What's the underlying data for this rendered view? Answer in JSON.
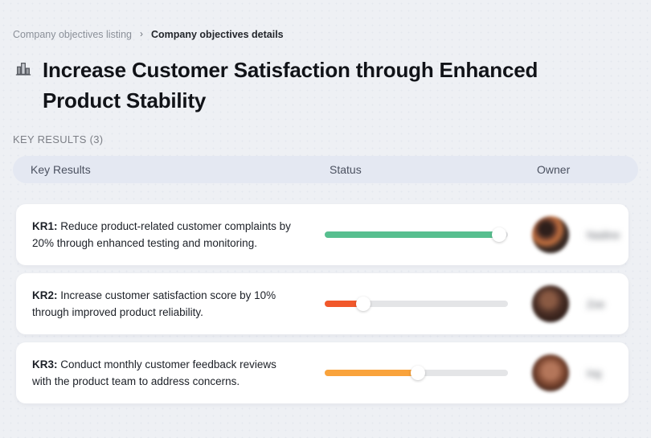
{
  "breadcrumb": {
    "parent": "Company objectives listing",
    "separator": "›",
    "current": "Company objectives details"
  },
  "page": {
    "title": "Increase Customer Satisfaction through Enhanced Product Stability",
    "title_icon": "buildings-icon",
    "section_label": "KEY RESULTS (3)"
  },
  "table": {
    "headers": [
      "Key Results",
      "Status",
      "Owner"
    ]
  },
  "rows": [
    {
      "kr_label": "KR1:",
      "text": "Reduce product-related customer complaints by 20% through enhanced testing and monitoring.",
      "progress": {
        "percent": 95,
        "color": "#57bf8f"
      },
      "owner": {
        "name": "Nadine",
        "blurred": true
      }
    },
    {
      "kr_label": "KR2:",
      "text": "Increase customer satisfaction score by 10% through improved product reliability.",
      "progress": {
        "percent": 21,
        "color": "#f1582b"
      },
      "owner": {
        "name": "Zoe",
        "blurred": true
      }
    },
    {
      "kr_label": "KR3:",
      "text": "Conduct monthly customer feedback reviews with the product team to address concerns.",
      "progress": {
        "percent": 51,
        "color": "#f9a33c"
      },
      "owner": {
        "name": "Ing",
        "blurred": true
      }
    }
  ],
  "colors": {
    "background": "#eef0f4",
    "header_row_bg": "#e4e8f2",
    "card_bg": "#ffffff",
    "progress_track": "#e4e5e7",
    "progress_green": "#57bf8f",
    "progress_red": "#f1582b",
    "progress_orange": "#f9a33c"
  }
}
